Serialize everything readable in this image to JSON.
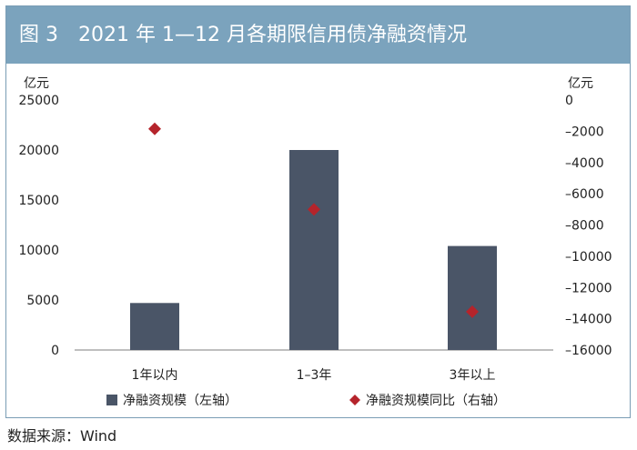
{
  "title": "图 3　2021 年 1—12 月各期限信用债净融资情况",
  "source": "数据来源：Wind",
  "colors": {
    "bar": "#4a5567",
    "marker": "#b5242b",
    "title_bg": "#7ba3bd",
    "axis": "#bfbfbf",
    "text": "#222222"
  },
  "chart_data": {
    "type": "bar",
    "categories": [
      "1年以内",
      "1–3年",
      "3年以上"
    ],
    "y_left": {
      "unit": "亿元",
      "range": [
        0,
        25000
      ],
      "ticks": [
        "0",
        "5000",
        "10000",
        "15000",
        "20000",
        "25000"
      ]
    },
    "y_right": {
      "unit": "亿元",
      "range": [
        -16000,
        0
      ],
      "ticks": [
        "0",
        "–2000",
        "–4000",
        "–6000",
        "–8000",
        "–10000",
        "–12000",
        "–14000",
        "–16000"
      ]
    },
    "series": [
      {
        "name": "净融资规模（左轴）",
        "type": "bar",
        "axis": "left",
        "values": [
          4700,
          20000,
          10400
        ]
      },
      {
        "name": "净融资规模同比（右轴）",
        "type": "scatter",
        "axis": "right",
        "marker": "diamond",
        "values": [
          -1850,
          -7000,
          -13550
        ]
      }
    ],
    "grid": false,
    "legend": "bottom"
  }
}
